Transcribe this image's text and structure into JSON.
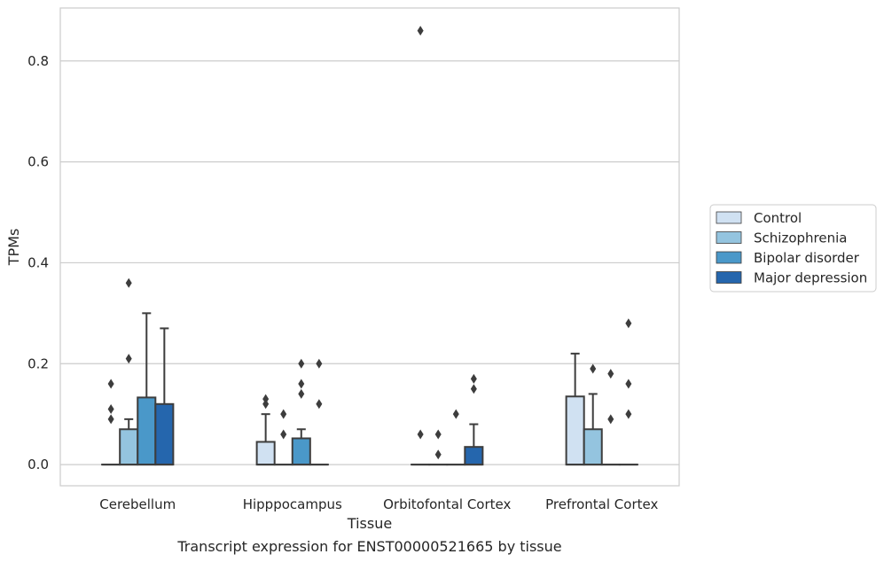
{
  "caption": "Transcript expression for ENST00000521665 by tissue",
  "chart_data": {
    "type": "box",
    "xlabel": "Tissue",
    "ylabel": "TPMs",
    "ylim": [
      -0.042,
      0.905
    ],
    "yticks": [
      "0.0",
      "0.2",
      "0.4",
      "0.6",
      "0.8"
    ],
    "grid": "horizontal",
    "legend_position": "right",
    "categories": [
      "Cerebellum",
      "Hipppocampus",
      "Orbitofontal Cortex",
      "Prefrontal Cortex"
    ],
    "series": [
      {
        "name": "Control",
        "color": "#d0e1f2",
        "boxes": [
          {
            "q1": 0,
            "q3": 0,
            "whisker_low": 0,
            "whisker_high": 0,
            "outliers": [
              0.09,
              0.11,
              0.16
            ]
          },
          {
            "q1": 0,
            "q3": 0.045,
            "whisker_low": 0,
            "whisker_high": 0.1,
            "outliers": [
              0.12,
              0.13
            ]
          },
          {
            "q1": 0,
            "q3": 0,
            "whisker_low": 0,
            "whisker_high": 0,
            "outliers": [
              0.06,
              0.86
            ]
          },
          {
            "q1": 0,
            "q3": 0.135,
            "whisker_low": 0,
            "whisker_high": 0.22,
            "outliers": []
          }
        ]
      },
      {
        "name": "Schizophrenia",
        "color": "#94c4df",
        "boxes": [
          {
            "q1": 0,
            "q3": 0.07,
            "whisker_low": 0,
            "whisker_high": 0.09,
            "outliers": [
              0.21,
              0.36
            ]
          },
          {
            "q1": 0,
            "q3": 0,
            "whisker_low": 0,
            "whisker_high": 0,
            "outliers": [
              0.06,
              0.1
            ]
          },
          {
            "q1": 0,
            "q3": 0,
            "whisker_low": 0,
            "whisker_high": 0,
            "outliers": [
              0.02,
              0.06
            ]
          },
          {
            "q1": 0,
            "q3": 0.07,
            "whisker_low": 0,
            "whisker_high": 0.14,
            "outliers": [
              0.19
            ]
          }
        ]
      },
      {
        "name": "Bipolar disorder",
        "color": "#4a98c9",
        "boxes": [
          {
            "q1": 0,
            "q3": 0.133,
            "whisker_low": 0,
            "whisker_high": 0.3,
            "outliers": []
          },
          {
            "q1": 0,
            "q3": 0.052,
            "whisker_low": 0,
            "whisker_high": 0.07,
            "outliers": [
              0.14,
              0.16,
              0.2
            ]
          },
          {
            "q1": 0,
            "q3": 0,
            "whisker_low": 0,
            "whisker_high": 0,
            "outliers": [
              0.1
            ]
          },
          {
            "q1": 0,
            "q3": 0,
            "whisker_low": 0,
            "whisker_high": 0,
            "outliers": [
              0.09,
              0.18
            ]
          }
        ]
      },
      {
        "name": "Major depression",
        "color": "#2566ad",
        "boxes": [
          {
            "q1": 0,
            "q3": 0.12,
            "whisker_low": 0,
            "whisker_high": 0.27,
            "outliers": []
          },
          {
            "q1": 0,
            "q3": 0,
            "whisker_low": 0,
            "whisker_high": 0,
            "outliers": [
              0.12,
              0.2
            ]
          },
          {
            "q1": 0,
            "q3": 0.035,
            "whisker_low": 0,
            "whisker_high": 0.08,
            "outliers": [
              0.15,
              0.17
            ]
          },
          {
            "q1": 0,
            "q3": 0,
            "whisker_low": 0,
            "whisker_high": 0,
            "outliers": [
              0.1,
              0.16,
              0.28
            ]
          }
        ]
      }
    ]
  }
}
